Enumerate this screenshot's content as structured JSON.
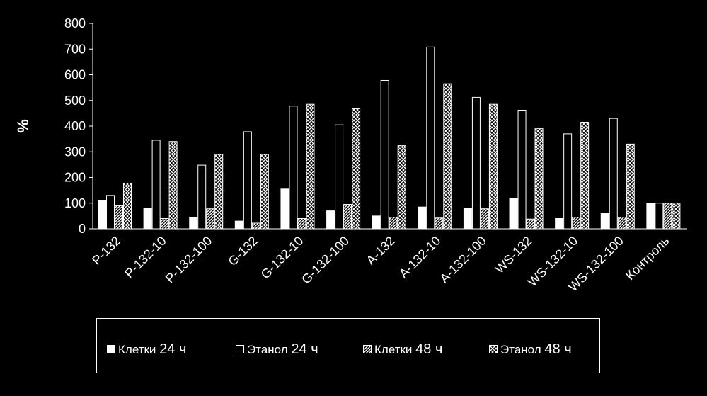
{
  "chart_data": {
    "type": "bar",
    "ylabel": "%",
    "xlabel": "",
    "ylim": [
      0,
      800
    ],
    "yticks": [
      0,
      100,
      200,
      300,
      400,
      500,
      600,
      700,
      800
    ],
    "grid": false,
    "legend_position": "bottom",
    "categories": [
      "P-132",
      "P-132-10",
      "P-132-100",
      "G-132",
      "G-132-10",
      "G-132-100",
      "A-132",
      "A-132-10",
      "A-132-100",
      "WS-132",
      "WS-132-10",
      "WS-132-100",
      "Контроль"
    ],
    "series": [
      {
        "name": "Клетки 24 ч",
        "name_label": "Клетки",
        "name_num": "24 ч",
        "fill": "solid",
        "values": [
          110,
          80,
          45,
          30,
          155,
          70,
          50,
          85,
          80,
          120,
          40,
          60,
          100
        ]
      },
      {
        "name": "Этанол 24 ч",
        "name_label": "Этанол",
        "name_num": "24 ч",
        "fill": "empty",
        "values": [
          130,
          345,
          248,
          378,
          478,
          405,
          578,
          708,
          512,
          462,
          370,
          430,
          100
        ]
      },
      {
        "name": "Клетки 48 ч",
        "name_label": "Клетки",
        "name_num": "48 ч",
        "fill": "hatch",
        "values": [
          90,
          40,
          78,
          22,
          40,
          95,
          45,
          42,
          78,
          38,
          45,
          45,
          100
        ]
      },
      {
        "name": "Этанол 48 ч",
        "name_label": "Этанол",
        "name_num": "48 ч",
        "fill": "crosshatch",
        "values": [
          178,
          340,
          290,
          290,
          485,
          468,
          325,
          565,
          485,
          390,
          415,
          330,
          100
        ]
      }
    ]
  },
  "colors": {
    "background": "#000000",
    "foreground": "#ffffff"
  }
}
